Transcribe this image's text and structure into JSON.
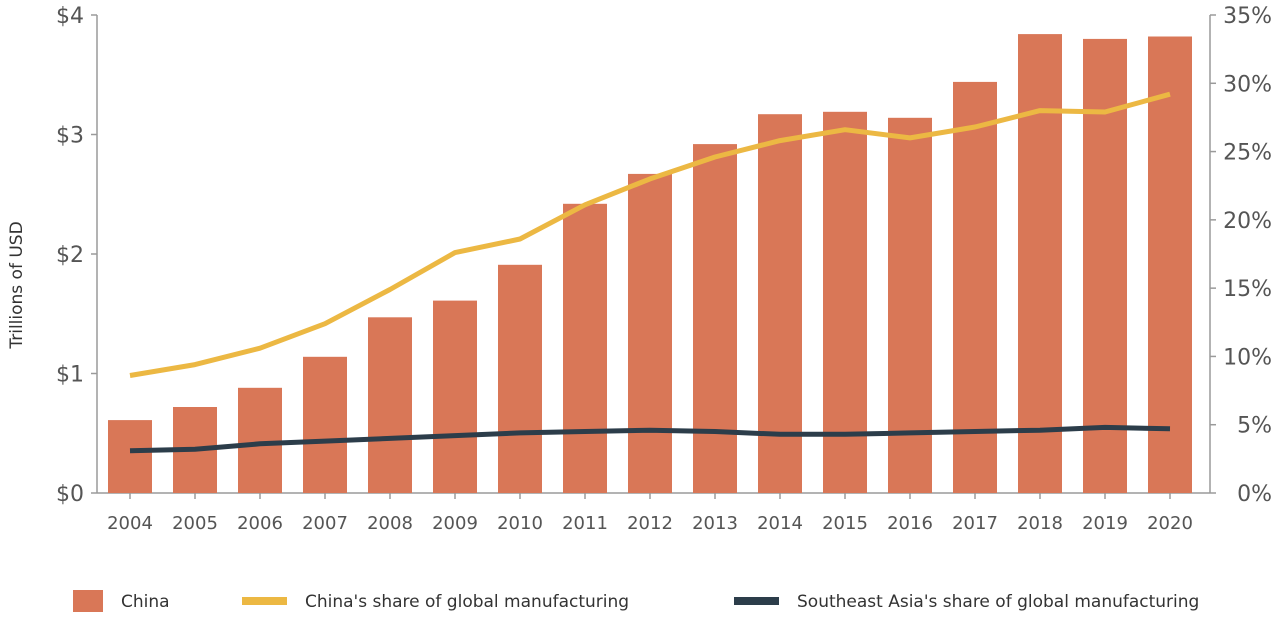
{
  "chart_data": {
    "type": "bar",
    "categories": [
      "2004",
      "2005",
      "2006",
      "2007",
      "2008",
      "2009",
      "2010",
      "2011",
      "2012",
      "2013",
      "2014",
      "2015",
      "2016",
      "2017",
      "2018",
      "2019",
      "2020"
    ],
    "series": [
      {
        "name": "China",
        "type": "bar",
        "axis": "left",
        "color": "#d97757",
        "values": [
          0.61,
          0.72,
          0.88,
          1.14,
          1.47,
          1.61,
          1.91,
          2.42,
          2.67,
          2.92,
          3.17,
          3.19,
          3.14,
          3.44,
          3.84,
          3.8,
          3.82
        ]
      },
      {
        "name": "China's share of global manufacturing",
        "type": "line",
        "axis": "right",
        "color": "#ecb843",
        "values": [
          8.6,
          9.4,
          10.6,
          12.4,
          14.9,
          17.6,
          18.6,
          21.1,
          23.0,
          24.6,
          25.8,
          26.6,
          26.0,
          26.8,
          28.0,
          27.9,
          29.2
        ]
      },
      {
        "name": "Southeast Asia's share of global manufacturing",
        "type": "line",
        "axis": "right",
        "color": "#2c3d4a",
        "values": [
          3.1,
          3.2,
          3.6,
          3.8,
          4.0,
          4.2,
          4.4,
          4.5,
          4.6,
          4.5,
          4.3,
          4.3,
          4.4,
          4.5,
          4.6,
          4.8,
          4.7
        ]
      }
    ],
    "yaxis_left": {
      "label": "Trillions of USD",
      "ticks": [
        "$0",
        "$1",
        "$2",
        "$3",
        "$4"
      ],
      "range": [
        0,
        4
      ]
    },
    "yaxis_right": {
      "ticks": [
        "0%",
        "5%",
        "10%",
        "15%",
        "20%",
        "25%",
        "30%",
        "35%"
      ],
      "range": [
        0,
        35
      ]
    },
    "grid": false,
    "legend": "bottom"
  }
}
